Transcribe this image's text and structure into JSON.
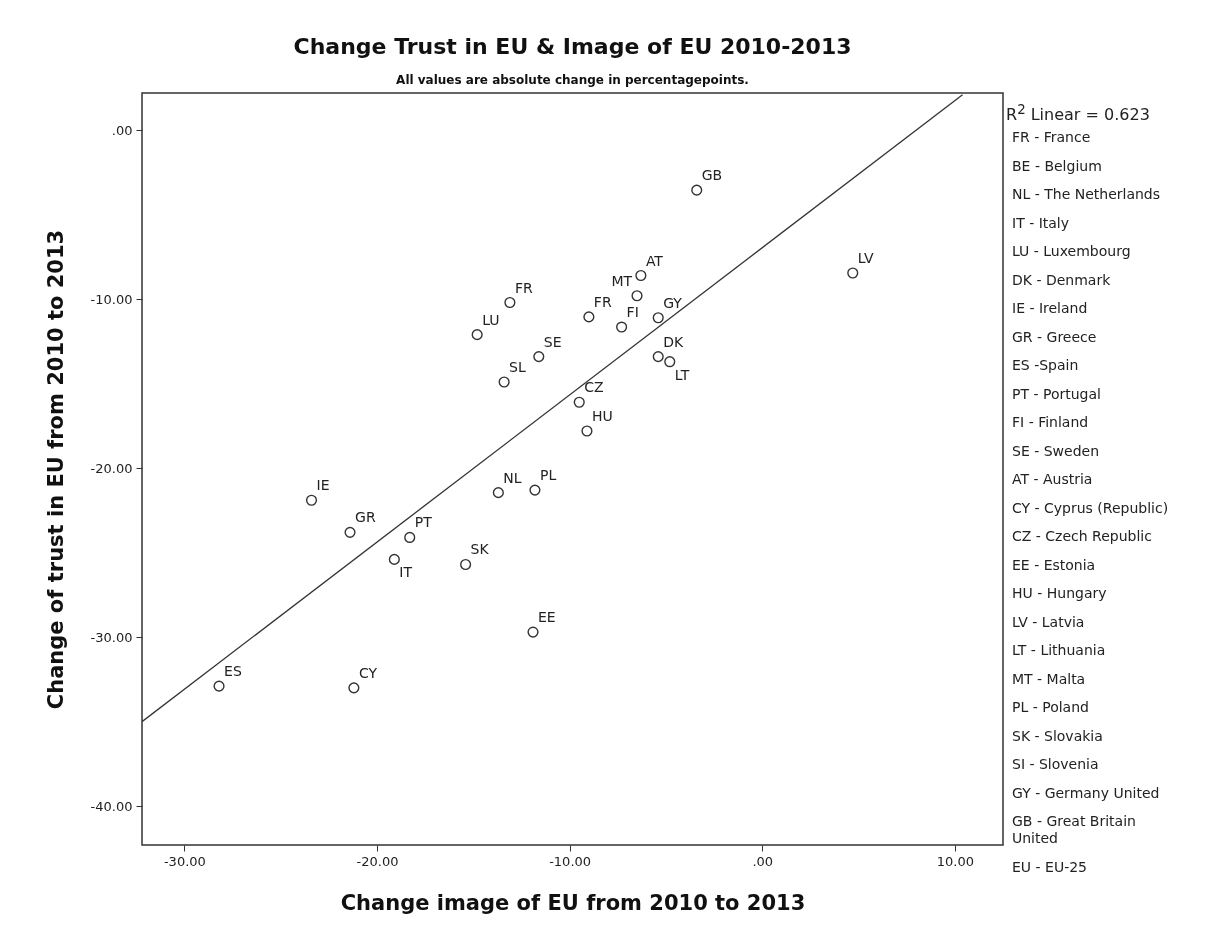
{
  "chart_data": {
    "type": "scatter",
    "title": "Change Trust in EU & Image of EU 2010-2013",
    "subtitle": "All values are absolute change in percentagepoints.",
    "xlabel": "Change image of EU from 2010 to 2013",
    "ylabel": "Change of trust in EU from 2010 to 2013",
    "xlim": [
      -32.2,
      12.5
    ],
    "ylim": [
      -42.3,
      2.2
    ],
    "xticks": [
      {
        "value": -30,
        "label": "-30.00"
      },
      {
        "value": -20,
        "label": "-20.00"
      },
      {
        "value": -10,
        "label": "-10.00"
      },
      {
        "value": 0,
        "label": ".00"
      },
      {
        "value": 10,
        "label": "10.00"
      }
    ],
    "yticks": [
      {
        "value": 0,
        "label": ".00"
      },
      {
        "value": -10,
        "label": "-10.00"
      },
      {
        "value": -20,
        "label": "-20.00"
      },
      {
        "value": -30,
        "label": "-30.00"
      },
      {
        "value": -40,
        "label": "-40.00"
      }
    ],
    "marker": "circle",
    "series": [
      {
        "color": "#333333",
        "x": [
          -13.1,
          -14.8,
          -11.6,
          -13.4,
          -3.4,
          4.7,
          -6.3,
          -6.5,
          -9.0,
          -7.3,
          -5.4,
          -5.4,
          -4.8,
          -9.5,
          -9.1,
          -23.4,
          -21.4,
          -18.3,
          -19.1,
          -15.4,
          -13.7,
          -11.8,
          -11.9,
          -28.2,
          -21.2
        ],
        "values": [
          -10.2,
          -12.1,
          -13.4,
          -14.9,
          -3.55,
          -8.45,
          -8.6,
          -9.8,
          -11.05,
          -11.65,
          -11.1,
          -13.4,
          -13.7,
          -16.1,
          -17.8,
          -21.9,
          -23.8,
          -24.1,
          -25.4,
          -25.7,
          -21.45,
          -21.3,
          -29.7,
          -32.9,
          -33.0
        ]
      },
      {
        "type": "line",
        "marker": "none",
        "color": "#333333",
        "x": [
          -32.2,
          10.4
        ],
        "values": [
          -35.0,
          2.1
        ]
      }
    ],
    "annotations": [
      {
        "text": "FR",
        "x": -13.1,
        "y": -10.2
      },
      {
        "text": "LU",
        "x": -14.8,
        "y": -12.1
      },
      {
        "text": "SE",
        "x": -11.6,
        "y": -13.4
      },
      {
        "text": "SL",
        "x": -13.4,
        "y": -14.9
      },
      {
        "text": "GB",
        "x": -3.4,
        "y": -3.55
      },
      {
        "text": "LV",
        "x": 4.7,
        "y": -8.45
      },
      {
        "text": "AT",
        "x": -6.3,
        "y": -8.6
      },
      {
        "text": "MT",
        "x": -6.5,
        "y": -9.8
      },
      {
        "text": "FR",
        "x": -9.0,
        "y": -11.05
      },
      {
        "text": "FI",
        "x": -7.3,
        "y": -11.65
      },
      {
        "text": "GY",
        "x": -5.4,
        "y": -11.1
      },
      {
        "text": "DK",
        "x": -5.4,
        "y": -13.4
      },
      {
        "text": "LT",
        "x": -4.8,
        "y": -13.7
      },
      {
        "text": "CZ",
        "x": -9.5,
        "y": -16.1
      },
      {
        "text": "HU",
        "x": -9.1,
        "y": -17.8
      },
      {
        "text": "IE",
        "x": -23.4,
        "y": -21.9
      },
      {
        "text": "GR",
        "x": -21.4,
        "y": -23.8
      },
      {
        "text": "PT",
        "x": -18.3,
        "y": -24.1
      },
      {
        "text": "IT",
        "x": -19.1,
        "y": -25.4
      },
      {
        "text": "SK",
        "x": -15.4,
        "y": -25.7
      },
      {
        "text": "NL",
        "x": -13.7,
        "y": -21.45
      },
      {
        "text": "PL",
        "x": -11.8,
        "y": -21.3
      },
      {
        "text": "EE",
        "x": -11.9,
        "y": -29.7
      },
      {
        "text": "ES",
        "x": -28.2,
        "y": -32.9
      },
      {
        "text": "CY",
        "x": -21.2,
        "y": -33.0
      },
      "R$^{2}$ Linear = 0.623",
      "FR - France",
      "BE - Belgium",
      "NL - The Netherlands",
      "IT - Italy",
      "LU - Luxembourg",
      "DK - Denmark",
      "IE - Ireland",
      "GR - Greece",
      "ES -Spain",
      "PT - Portugal",
      "FI - Finland",
      "SE - Sweden",
      "AT - Austria",
      "CY - Cyprus (Republic)",
      "CZ - Czech Republic",
      "EE - Estonia",
      "HU - Hungary",
      "LV - Latvia",
      "LT - Lithuania",
      "MT - Malta",
      "PL - Poland",
      "SK - Slovakia",
      "SI - Slovenia",
      "GY - Germany United",
      "GB - Great Britain United",
      "EU - EU-25"
    ]
  }
}
